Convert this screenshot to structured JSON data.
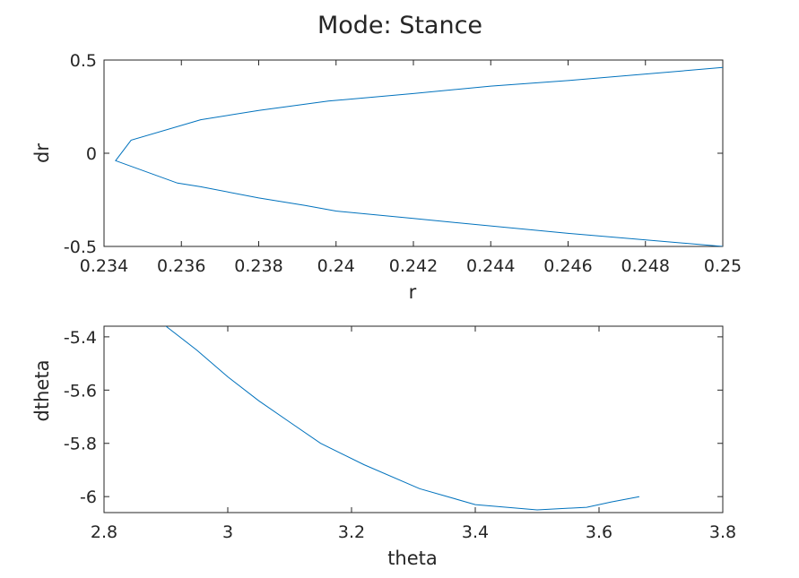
{
  "figure": {
    "title": "Mode: Stance"
  },
  "colors": {
    "line": "#0072BD",
    "axes": "#262626",
    "background": "#ffffff"
  },
  "chart_data": [
    {
      "type": "line",
      "title": "Mode: Stance",
      "xlabel": "r",
      "ylabel": "dr",
      "xlim": [
        0.234,
        0.25
      ],
      "ylim": [
        -0.5,
        0.5
      ],
      "xticks": [
        0.234,
        0.236,
        0.238,
        0.24,
        0.242,
        0.244,
        0.246,
        0.248,
        0.25
      ],
      "xtick_labels": [
        "0.234",
        "0.236",
        "0.238",
        "0.24",
        "0.242",
        "0.244",
        "0.246",
        "0.248",
        "0.25"
      ],
      "yticks": [
        -0.5,
        0,
        0.5
      ],
      "ytick_labels": [
        "-0.5",
        "0",
        "0.5"
      ],
      "grid": false,
      "series": [
        {
          "x": [
            0.25,
            0.246,
            0.243,
            0.242,
            0.24,
            0.2392,
            0.238,
            0.2365,
            0.2359,
            0.2343,
            0.2347,
            0.2365,
            0.238,
            0.2398,
            0.242,
            0.244,
            0.246,
            0.25
          ],
          "y": [
            -0.5,
            -0.43,
            -0.37,
            -0.35,
            -0.31,
            -0.28,
            -0.24,
            -0.18,
            -0.16,
            -0.04,
            0.07,
            0.18,
            0.23,
            0.28,
            0.32,
            0.36,
            0.39,
            0.46
          ]
        }
      ]
    },
    {
      "type": "line",
      "xlabel": "theta",
      "ylabel": "dtheta",
      "xlim": [
        2.8,
        3.8
      ],
      "ylim": [
        -6.06,
        -5.36
      ],
      "xticks": [
        2.8,
        3.0,
        3.2,
        3.4,
        3.6,
        3.8
      ],
      "xtick_labels": [
        "2.8",
        "3",
        "3.2",
        "3.4",
        "3.6",
        "3.8"
      ],
      "yticks": [
        -5.4,
        -5.6,
        -5.8,
        -6.0
      ],
      "ytick_labels": [
        "-5.4",
        "-5.6",
        "-5.8",
        "-6"
      ],
      "grid": false,
      "series": [
        {
          "x": [
            2.9,
            2.95,
            3.0,
            3.05,
            3.1,
            3.15,
            3.22,
            3.31,
            3.4,
            3.5,
            3.58,
            3.62,
            3.665
          ],
          "y": [
            -5.36,
            -5.45,
            -5.55,
            -5.64,
            -5.72,
            -5.8,
            -5.88,
            -5.97,
            -6.03,
            -6.05,
            -6.04,
            -6.02,
            -6.0
          ]
        }
      ]
    }
  ]
}
